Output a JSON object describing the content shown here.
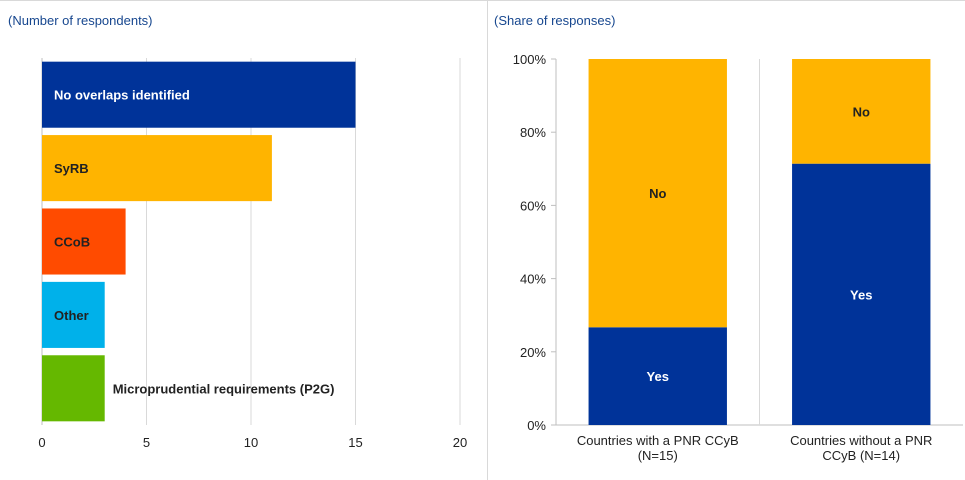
{
  "chart_data": [
    {
      "type": "bar",
      "orientation": "horizontal",
      "subtitle": "(Number of respondents)",
      "categories": [
        "No overlaps identified",
        "SyRB",
        "CCoB",
        "Other",
        "Microprudential requirements (P2G)"
      ],
      "values": [
        15,
        11,
        4,
        3,
        3
      ],
      "colors": [
        "#003399",
        "#ffb400",
        "#ff4b00",
        "#00b1ea",
        "#65b800"
      ],
      "label_colors": [
        "#ffffff",
        "#222222",
        "#222222",
        "#222222",
        "#222222"
      ],
      "xlim": [
        0,
        20
      ],
      "xticks": [
        0,
        5,
        10,
        15,
        20
      ],
      "grid": true
    },
    {
      "type": "bar",
      "stacked": true,
      "subtitle": "(Share of responses)",
      "categories": [
        "Countries with a PNR CCyB (N=15)",
        "Countries without a PNR CCyB (N=14)"
      ],
      "category_lines": [
        [
          "Countries with a PNR CCyB",
          "(N=15)"
        ],
        [
          "Countries without a PNR",
          "CCyB (N=14)"
        ]
      ],
      "series": [
        {
          "name": "Yes",
          "values": [
            26.7,
            71.4
          ],
          "color": "#003399",
          "label_color": "#ffffff"
        },
        {
          "name": "No",
          "values": [
            73.3,
            28.6
          ],
          "color": "#ffb400",
          "label_color": "#222222"
        }
      ],
      "ylim": [
        0,
        100
      ],
      "yticks": [
        0,
        20,
        40,
        60,
        80,
        100
      ],
      "ytick_labels": [
        "0%",
        "20%",
        "40%",
        "60%",
        "80%",
        "100%"
      ],
      "grid": true
    }
  ]
}
